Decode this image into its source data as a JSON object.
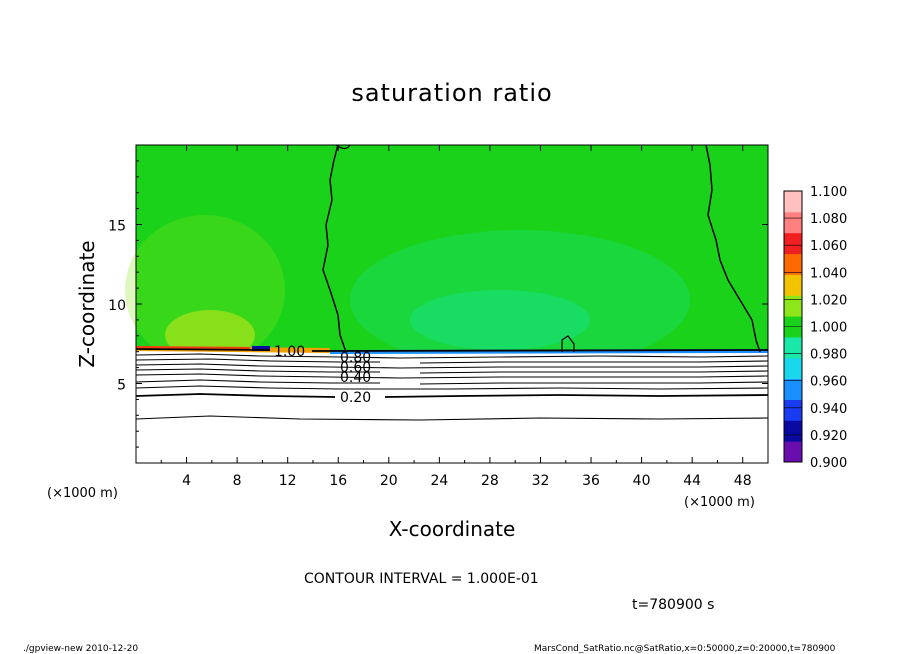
{
  "chart_data": {
    "type": "heatmap",
    "title": "saturation ratio",
    "xlabel": "X-coordinate",
    "ylabel": "Z-coordinate",
    "x_unit": "(×1000 m)",
    "z_unit": "(×1000 m)",
    "xlim": [
      0,
      50
    ],
    "ylim": [
      0,
      20
    ],
    "xticks": [
      "4",
      "8",
      "12",
      "16",
      "20",
      "24",
      "28",
      "32",
      "36",
      "40",
      "44",
      "48"
    ],
    "yticks": [
      "5",
      "10",
      "15"
    ],
    "colorbar": {
      "levels": [
        "0.900",
        "0.920",
        "0.940",
        "0.960",
        "0.980",
        "1.000",
        "1.020",
        "1.040",
        "1.060",
        "1.080",
        "1.100"
      ],
      "colors": [
        "#6a0dad",
        "#0a0aa0",
        "#1a3cf0",
        "#1a90ff",
        "#1ad8ec",
        "#1ae8a8",
        "#1ad21a",
        "#8ce61a",
        "#f2c400",
        "#ff6a00",
        "#f02020",
        "#ff8080",
        "#ffc0c0"
      ]
    },
    "contour_labels": [
      "1.00",
      "0.80",
      "0.60",
      "0.40",
      "0.20"
    ],
    "contour_interval": "CONTOUR INTERVAL = 1.000E-01",
    "time_label": "t=780900 s",
    "background_color": "#1ad21a"
  },
  "footer": {
    "left": "./gpview-new   2010-12-20",
    "right": "MarsCond_SatRatio.nc@SatRatio,x=0:50000,z=0:20000,t=780900"
  }
}
